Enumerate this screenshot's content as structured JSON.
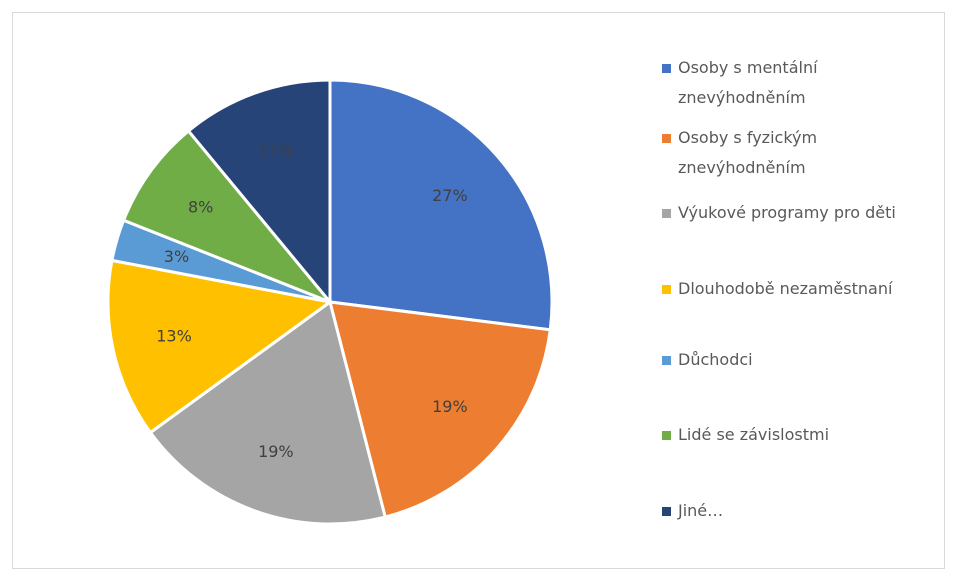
{
  "chart_data": {
    "type": "pie",
    "categories": [
      "Osoby s mentální znevýhodněním",
      "Osoby s fyzickým znevýhodněním",
      "Výukové programy pro děti",
      "Dlouhodobě nezaměstnaní",
      "Důchodci",
      "Lidé se závislostmi",
      "Jiné…"
    ],
    "values": [
      27,
      19,
      19,
      13,
      3,
      8,
      11
    ],
    "value_labels": [
      "27%",
      "19%",
      "19%",
      "13%",
      "3%",
      "8%",
      "11%"
    ],
    "colors": [
      "#4472c4",
      "#ed7d31",
      "#a5a5a5",
      "#ffc000",
      "#5b9bd5",
      "#70ad47",
      "#264478"
    ],
    "legend": "right"
  }
}
